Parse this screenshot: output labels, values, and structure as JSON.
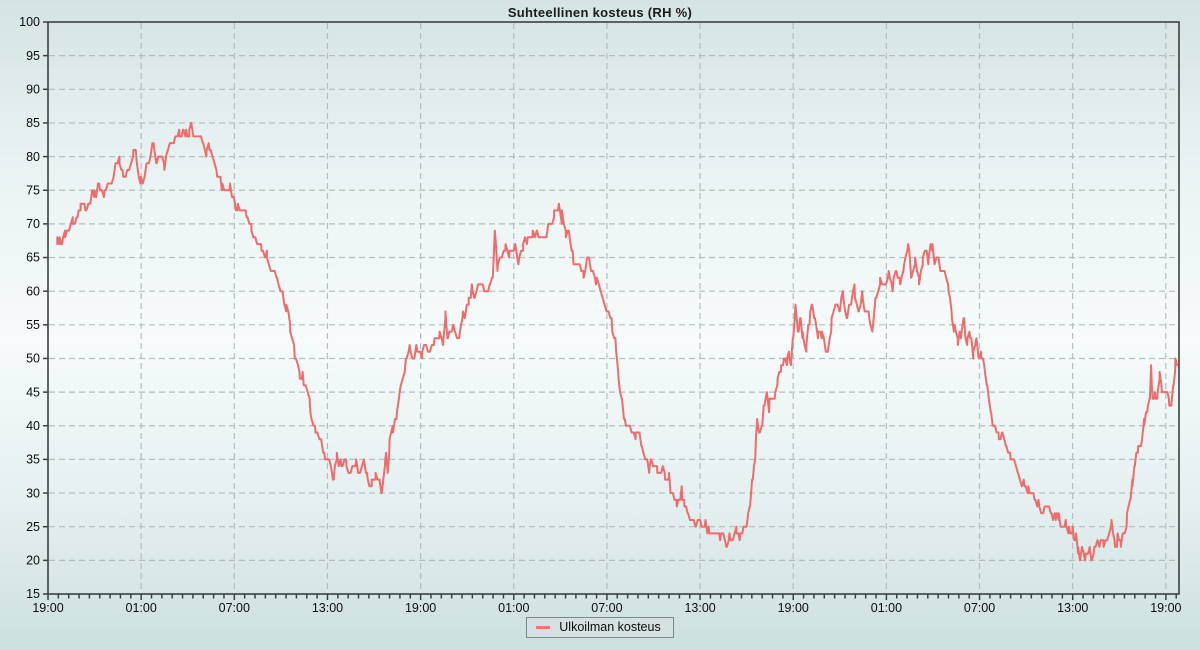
{
  "title": "Suhteellinen kosteus (RH %)",
  "legend": {
    "label": "Ulkoilman kosteus",
    "swatch_color": "#f07474"
  },
  "colors": {
    "line": "#ee6c6c",
    "grid": "#b3bebe",
    "axis": "#3f3f3f",
    "tick": "#3f3f3f",
    "label": "#0c0c0c",
    "legend_bg": "#d6e2e2",
    "legend_border": "#7d8a8a"
  },
  "chart_data": {
    "type": "line",
    "title": "Suhteellinen kosteus (RH %)",
    "grid": true,
    "legend_position": "bottom",
    "y": {
      "min": 15,
      "max": 100,
      "step": 5,
      "label": "RH %"
    },
    "x": {
      "unit": "hours_from_start",
      "total_hours": 72.85,
      "major_step_hours": 6,
      "minor_step_hours": 0.6667,
      "tick_labels": [
        "19:00",
        "01:00",
        "07:00",
        "13:00",
        "19:00",
        "01:00",
        "07:00",
        "13:00",
        "19:00",
        "01:00",
        "07:00",
        "13:00",
        "19:00"
      ]
    },
    "noise_rh": 0.8,
    "series": [
      {
        "name": "Ulkoilman kosteus",
        "color": "#ee6c6c",
        "unit": "RH %",
        "points": [
          [
            0.6,
            67
          ],
          [
            0.75,
            67.5
          ],
          [
            0.9,
            67
          ],
          [
            1.1,
            68
          ],
          [
            1.3,
            68.5
          ],
          [
            1.6,
            70.5
          ],
          [
            1.9,
            71
          ],
          [
            2.1,
            72.8
          ],
          [
            2.4,
            72
          ],
          [
            3.0,
            74.6
          ],
          [
            3.3,
            75.3
          ],
          [
            3.65,
            74
          ],
          [
            4.4,
            78.8
          ],
          [
            4.6,
            79.8
          ],
          [
            4.8,
            77.3
          ],
          [
            5.0,
            76.6
          ],
          [
            5.5,
            80.5
          ],
          [
            5.65,
            81
          ],
          [
            5.95,
            76.3
          ],
          [
            6.1,
            75.8
          ],
          [
            6.5,
            79.5
          ],
          [
            6.8,
            81.9
          ],
          [
            7.0,
            79.2
          ],
          [
            7.3,
            79.7
          ],
          [
            7.5,
            78.8
          ],
          [
            7.85,
            81.5
          ],
          [
            8.2,
            83.2
          ],
          [
            8.45,
            83.5
          ],
          [
            8.7,
            84.2
          ],
          [
            8.9,
            83
          ],
          [
            9.1,
            84.2
          ],
          [
            9.3,
            84.2
          ],
          [
            9.5,
            83.3
          ],
          [
            9.7,
            83.4
          ],
          [
            10.0,
            81.5
          ],
          [
            10.2,
            80.5
          ],
          [
            10.4,
            81
          ],
          [
            10.6,
            79.7
          ],
          [
            10.9,
            77.5
          ],
          [
            11.2,
            76
          ],
          [
            11.45,
            75.3
          ],
          [
            11.7,
            75.3
          ],
          [
            11.9,
            74
          ],
          [
            12.2,
            72.5
          ],
          [
            12.45,
            72
          ],
          [
            12.8,
            71.5
          ],
          [
            13.1,
            69
          ],
          [
            13.5,
            67.5
          ],
          [
            13.75,
            67
          ],
          [
            14.1,
            65.5
          ],
          [
            14.4,
            63.5
          ],
          [
            14.75,
            61.5
          ],
          [
            15.1,
            59.5
          ],
          [
            15.35,
            57.5
          ],
          [
            15.6,
            55
          ],
          [
            15.9,
            51
          ],
          [
            16.2,
            47.8
          ],
          [
            16.4,
            47.5
          ],
          [
            16.6,
            45.8
          ],
          [
            16.9,
            42.3
          ],
          [
            17.2,
            39.8
          ],
          [
            17.5,
            37.8
          ],
          [
            17.8,
            35.9
          ],
          [
            18.1,
            34.6
          ],
          [
            18.4,
            32.3
          ],
          [
            18.6,
            35.3
          ],
          [
            18.9,
            33.8
          ],
          [
            19.2,
            34.6
          ],
          [
            19.5,
            33.2
          ],
          [
            19.8,
            34
          ],
          [
            20.1,
            33.4
          ],
          [
            20.35,
            34.4
          ],
          [
            20.55,
            33
          ],
          [
            20.7,
            30.6
          ],
          [
            20.85,
            32
          ],
          [
            21.1,
            32
          ],
          [
            21.35,
            32
          ],
          [
            21.5,
            30.5
          ],
          [
            21.7,
            34
          ],
          [
            21.78,
            36
          ],
          [
            21.88,
            33.2
          ],
          [
            22.0,
            37.5
          ],
          [
            22.2,
            39.5
          ],
          [
            22.45,
            41.8
          ],
          [
            22.65,
            44.7
          ],
          [
            22.85,
            47.1
          ],
          [
            23.05,
            50
          ],
          [
            23.3,
            51
          ],
          [
            23.6,
            50.5
          ],
          [
            23.8,
            51.8
          ],
          [
            24.1,
            50.8
          ],
          [
            24.35,
            52.3
          ],
          [
            24.6,
            50.3
          ],
          [
            24.9,
            52.5
          ],
          [
            25.2,
            53.5
          ],
          [
            25.45,
            52.3
          ],
          [
            25.6,
            55.8
          ],
          [
            25.75,
            53
          ],
          [
            26.0,
            53.8
          ],
          [
            26.2,
            54.6
          ],
          [
            26.4,
            53
          ],
          [
            26.7,
            56
          ],
          [
            27.1,
            58.5
          ],
          [
            27.3,
            61
          ],
          [
            27.45,
            59
          ],
          [
            27.7,
            60.3
          ],
          [
            28.0,
            60.8
          ],
          [
            28.2,
            59.8
          ],
          [
            28.45,
            61
          ],
          [
            28.65,
            61.5
          ],
          [
            28.78,
            68.8
          ],
          [
            28.95,
            63.8
          ],
          [
            29.2,
            65.5
          ],
          [
            29.45,
            66.5
          ],
          [
            29.7,
            65.8
          ],
          [
            30.0,
            66.3
          ],
          [
            30.3,
            65.2
          ],
          [
            30.6,
            66.5
          ],
          [
            30.9,
            67.3
          ],
          [
            31.2,
            68
          ],
          [
            31.5,
            68.5
          ],
          [
            31.8,
            67.8
          ],
          [
            32.1,
            68.5
          ],
          [
            32.35,
            70.3
          ],
          [
            32.6,
            71
          ],
          [
            32.9,
            72.2
          ],
          [
            33.1,
            71
          ],
          [
            33.35,
            69
          ],
          [
            33.55,
            68.3
          ],
          [
            33.8,
            65.3
          ],
          [
            34.0,
            64.5
          ],
          [
            34.25,
            63.5
          ],
          [
            34.5,
            62.7
          ],
          [
            34.8,
            65.8
          ],
          [
            35.0,
            63
          ],
          [
            35.3,
            61.5
          ],
          [
            35.6,
            60.5
          ],
          [
            36.0,
            57.5
          ],
          [
            36.3,
            55
          ],
          [
            36.55,
            52.3
          ],
          [
            36.75,
            47
          ],
          [
            36.95,
            44
          ],
          [
            37.15,
            41
          ],
          [
            37.35,
            39.8
          ],
          [
            37.6,
            38.8
          ],
          [
            37.85,
            38.3
          ],
          [
            38.1,
            39
          ],
          [
            38.25,
            37.2
          ],
          [
            38.5,
            35
          ],
          [
            38.75,
            34
          ],
          [
            39.0,
            34.8
          ],
          [
            39.25,
            33.3
          ],
          [
            39.5,
            33.8
          ],
          [
            39.75,
            32.8
          ],
          [
            40.0,
            32
          ],
          [
            40.25,
            29.8
          ],
          [
            40.5,
            29
          ],
          [
            40.7,
            29.3
          ],
          [
            40.82,
            30.2
          ],
          [
            41.0,
            27.8
          ],
          [
            41.2,
            27
          ],
          [
            41.45,
            25.8
          ],
          [
            41.7,
            25.3
          ],
          [
            42.0,
            25.8
          ],
          [
            42.3,
            25
          ],
          [
            42.55,
            24.7
          ],
          [
            42.8,
            23.6
          ],
          [
            43.05,
            24.4
          ],
          [
            43.3,
            22.7
          ],
          [
            43.5,
            24.3
          ],
          [
            43.7,
            22.8
          ],
          [
            43.9,
            23.8
          ],
          [
            44.1,
            23
          ],
          [
            44.35,
            24.6
          ],
          [
            44.55,
            23.4
          ],
          [
            44.8,
            24.4
          ],
          [
            45.0,
            25.5
          ],
          [
            45.2,
            28
          ],
          [
            45.4,
            33
          ],
          [
            45.55,
            35.8
          ],
          [
            45.68,
            41.5
          ],
          [
            45.8,
            38.7
          ],
          [
            46.0,
            40
          ],
          [
            46.15,
            43.3
          ],
          [
            46.3,
            45.2
          ],
          [
            46.45,
            43
          ],
          [
            46.6,
            44.3
          ],
          [
            46.8,
            44
          ],
          [
            47.0,
            46.5
          ],
          [
            47.2,
            48.5
          ],
          [
            47.4,
            49.8
          ],
          [
            47.6,
            49.2
          ],
          [
            47.75,
            50.3
          ],
          [
            47.85,
            48.5
          ],
          [
            48.0,
            53.5
          ],
          [
            48.15,
            57.8
          ],
          [
            48.3,
            54.2
          ],
          [
            48.45,
            56
          ],
          [
            48.6,
            53.8
          ],
          [
            48.85,
            52
          ],
          [
            49.05,
            54.8
          ],
          [
            49.2,
            58.3
          ],
          [
            49.4,
            55.5
          ],
          [
            49.6,
            53
          ],
          [
            49.85,
            53.5
          ],
          [
            50.2,
            50.9
          ],
          [
            50.45,
            55
          ],
          [
            50.6,
            57.2
          ],
          [
            50.8,
            59
          ],
          [
            51.0,
            57
          ],
          [
            51.2,
            59.5
          ],
          [
            51.45,
            56.2
          ],
          [
            51.7,
            58.8
          ],
          [
            51.95,
            59.8
          ],
          [
            52.2,
            56.5
          ],
          [
            52.45,
            59.3
          ],
          [
            52.7,
            57.5
          ],
          [
            52.9,
            55.8
          ],
          [
            53.1,
            54.2
          ],
          [
            53.3,
            59
          ],
          [
            53.6,
            61.5
          ],
          [
            53.9,
            61
          ],
          [
            54.15,
            62.5
          ],
          [
            54.4,
            61
          ],
          [
            54.65,
            62.8
          ],
          [
            54.9,
            61.5
          ],
          [
            55.15,
            63.8
          ],
          [
            55.4,
            66.2
          ],
          [
            55.6,
            62.5
          ],
          [
            55.85,
            64.3
          ],
          [
            56.1,
            61.4
          ],
          [
            56.35,
            64.5
          ],
          [
            56.5,
            66.3
          ],
          [
            56.7,
            64.8
          ],
          [
            56.95,
            67.2
          ],
          [
            57.1,
            64
          ],
          [
            57.3,
            65.3
          ],
          [
            57.5,
            63.2
          ],
          [
            57.75,
            63
          ],
          [
            58.0,
            60.5
          ],
          [
            58.2,
            56
          ],
          [
            58.4,
            54
          ],
          [
            58.6,
            52.5
          ],
          [
            58.8,
            53.8
          ],
          [
            59.0,
            55.2
          ],
          [
            59.2,
            52
          ],
          [
            59.4,
            53.5
          ],
          [
            59.6,
            51
          ],
          [
            59.8,
            52.8
          ],
          [
            59.95,
            49.7
          ],
          [
            60.1,
            51
          ],
          [
            60.3,
            49
          ],
          [
            60.5,
            45.5
          ],
          [
            60.75,
            41.8
          ],
          [
            61.0,
            39.5
          ],
          [
            61.25,
            38.4
          ],
          [
            61.45,
            38.6
          ],
          [
            61.7,
            36.5
          ],
          [
            62.0,
            35
          ],
          [
            62.15,
            35.2
          ],
          [
            62.35,
            33.5
          ],
          [
            62.6,
            32
          ],
          [
            62.9,
            30.8
          ],
          [
            63.15,
            30.2
          ],
          [
            63.4,
            30.5
          ],
          [
            63.55,
            29.4
          ],
          [
            63.8,
            28.6
          ],
          [
            64.0,
            27.5
          ],
          [
            64.2,
            28.4
          ],
          [
            64.45,
            27.2
          ],
          [
            64.65,
            27
          ],
          [
            64.9,
            26.3
          ],
          [
            65.1,
            26.8
          ],
          [
            65.35,
            24.4
          ],
          [
            65.55,
            25.4
          ],
          [
            65.75,
            24
          ],
          [
            66.0,
            24.4
          ],
          [
            66.2,
            23.3
          ],
          [
            66.35,
            22
          ],
          [
            66.48,
            19.8
          ],
          [
            66.6,
            21.6
          ],
          [
            66.8,
            21
          ],
          [
            67.0,
            21.5
          ],
          [
            67.2,
            20.4
          ],
          [
            67.4,
            21.2
          ],
          [
            67.6,
            22.3
          ],
          [
            67.8,
            23.4
          ],
          [
            68.0,
            21.8
          ],
          [
            68.2,
            22.4
          ],
          [
            68.5,
            25.2
          ],
          [
            68.7,
            22.6
          ],
          [
            68.9,
            23.3
          ],
          [
            69.1,
            23
          ],
          [
            69.3,
            23.8
          ],
          [
            69.5,
            26.5
          ],
          [
            69.7,
            29.2
          ],
          [
            69.85,
            31.5
          ],
          [
            70.0,
            34.5
          ],
          [
            70.2,
            36.3
          ],
          [
            70.4,
            36.8
          ],
          [
            70.6,
            40
          ],
          [
            70.8,
            42.8
          ],
          [
            70.95,
            44
          ],
          [
            71.05,
            48.8
          ],
          [
            71.15,
            43.5
          ],
          [
            71.3,
            44.8
          ],
          [
            71.45,
            44.2
          ],
          [
            71.6,
            47.8
          ],
          [
            71.75,
            45.3
          ],
          [
            71.9,
            45.8
          ],
          [
            72.05,
            44.8
          ],
          [
            72.2,
            44.3
          ],
          [
            72.35,
            43.8
          ],
          [
            72.5,
            46.5
          ],
          [
            72.62,
            48.8
          ],
          [
            72.72,
            48.3
          ]
        ]
      }
    ]
  }
}
